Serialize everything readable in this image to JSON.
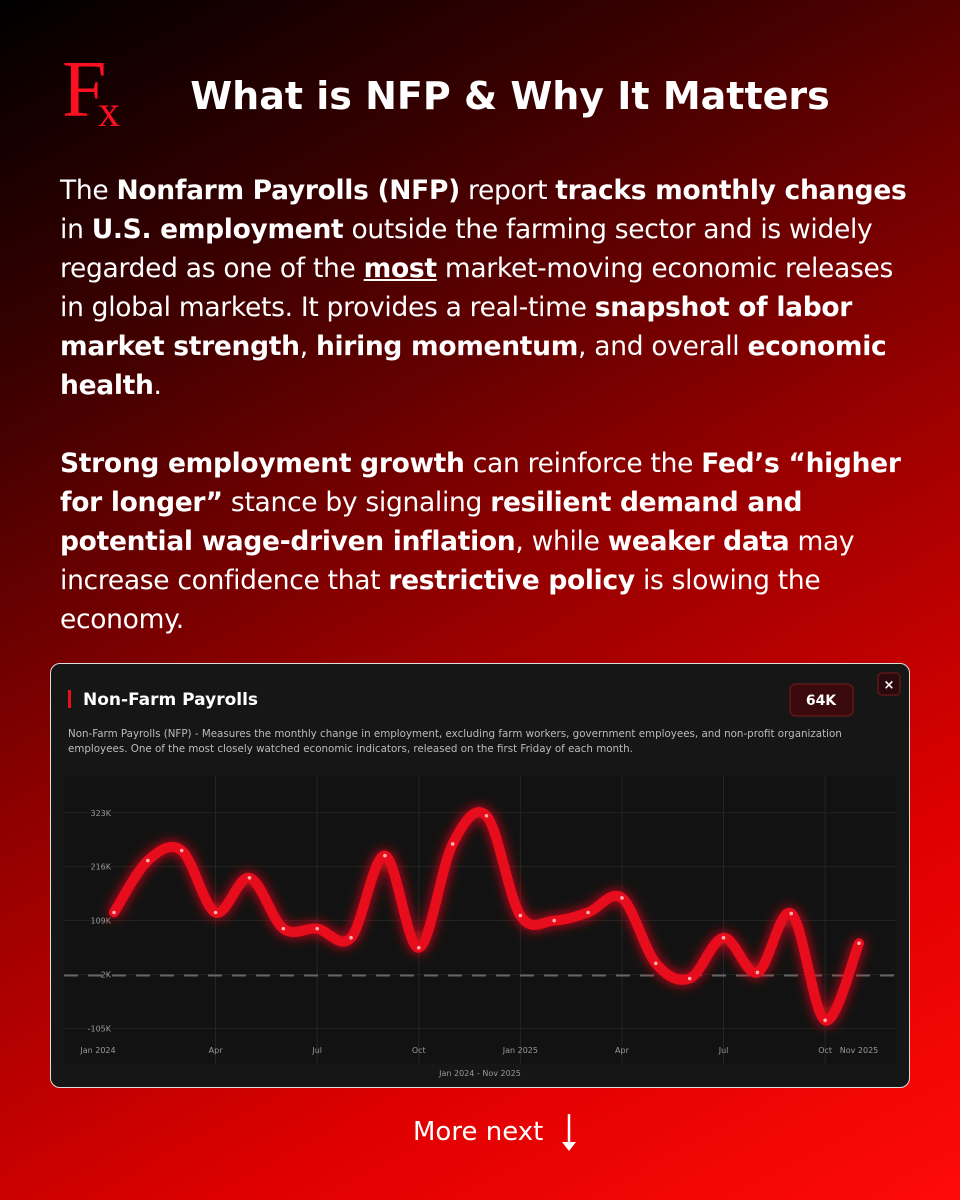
{
  "header": {
    "logo": {
      "main": "F",
      "sub": "x"
    },
    "title": "What is NFP & Why It Matters"
  },
  "paragraphs": [
    {
      "runs": [
        {
          "text": "The ",
          "bold": false
        },
        {
          "text": "Nonfarm Payrolls (NFP)",
          "bold": true
        },
        {
          "text": " report ",
          "bold": false
        },
        {
          "text": "tracks monthly changes",
          "bold": true
        },
        {
          "text": " in ",
          "bold": false
        },
        {
          "text": "U.S. employment",
          "bold": true
        },
        {
          "text": " outside the farming sector and is widely regarded as one of the ",
          "bold": false
        },
        {
          "text": "most",
          "bold": true,
          "underline": true
        },
        {
          "text": " market-moving economic releases in global markets. It provides a real-time ",
          "bold": false
        },
        {
          "text": "snapshot of labor market strength",
          "bold": true
        },
        {
          "text": ", ",
          "bold": false
        },
        {
          "text": "hiring momentum",
          "bold": true
        },
        {
          "text": ", and overall ",
          "bold": false
        },
        {
          "text": "economic health",
          "bold": true
        },
        {
          "text": ".",
          "bold": false
        }
      ]
    },
    {
      "runs": [
        {
          "text": "Strong employment growth",
          "bold": true
        },
        {
          "text": " can reinforce the ",
          "bold": false
        },
        {
          "text": "Fed’s “higher for longer”",
          "bold": true
        },
        {
          "text": " stance by signaling ",
          "bold": false
        },
        {
          "text": "resilient demand and potential wage-driven inflation",
          "bold": true
        },
        {
          "text": ", while ",
          "bold": false
        },
        {
          "text": "weaker data",
          "bold": true
        },
        {
          "text": " may increase confidence that ",
          "bold": false
        },
        {
          "text": "restrictive policy",
          "bold": true
        },
        {
          "text": " is slowing the economy.",
          "bold": false
        }
      ]
    }
  ],
  "chart_data": {
    "type": "line",
    "title": "Non-Farm Payrolls",
    "badge": "64K",
    "close": "×",
    "description": "Non-Farm Payrolls (NFP) - Measures the monthly change in employment, excluding farm workers, government employees, and non-profit organization employees. One of the most closely watched economic indicators, released on the first Friday of each month.",
    "x_caption": "Jan 2024 - Nov 2025",
    "categories": [
      "Jan 2024",
      null,
      null,
      "Apr",
      null,
      null,
      "Jul",
      null,
      null,
      "Oct",
      null,
      null,
      "Jan 2025",
      null,
      null,
      "Apr",
      null,
      null,
      "Jul",
      null,
      null,
      "Oct",
      "Nov 2025"
    ],
    "series": [
      {
        "name": "Non-Farm Payrolls",
        "color": "#e8101a",
        "values": [
          125,
          228,
          248,
          125,
          194,
          93,
          93,
          75,
          238,
          55,
          261,
          317,
          119,
          109,
          125,
          154,
          24,
          -6,
          75,
          6,
          123,
          -89,
          64
        ]
      }
    ],
    "ylim": [
      -140,
      390
    ],
    "yticks": [
      {
        "value": -105,
        "label": "-105K"
      },
      {
        "value": 2,
        "label": "2K"
      },
      {
        "value": 109,
        "label": "109K"
      },
      {
        "value": 216,
        "label": "216K"
      },
      {
        "value": 323,
        "label": "323K"
      }
    ],
    "zero_line": 0,
    "grid": true
  },
  "footer": {
    "text": "More next"
  }
}
